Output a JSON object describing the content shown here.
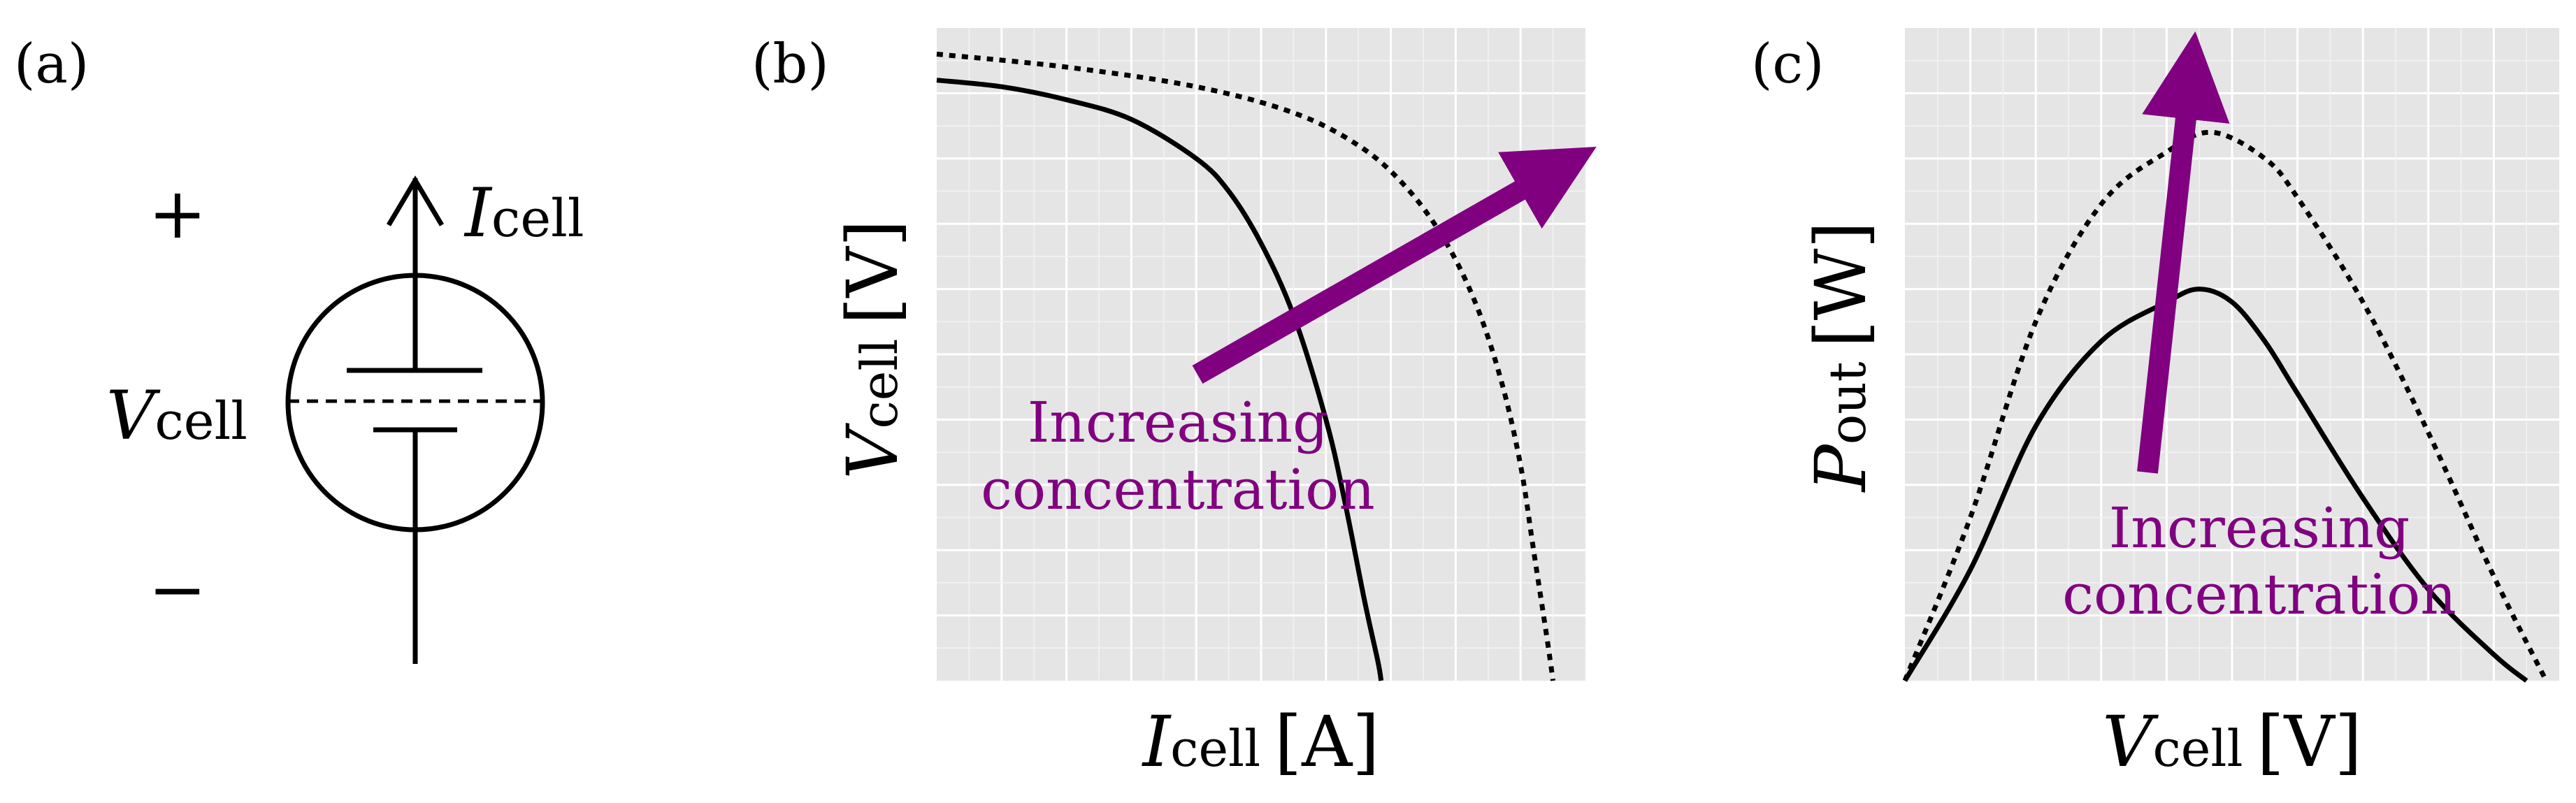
{
  "panels": {
    "a": {
      "label": "(a)",
      "plus_sign": "+",
      "minus_sign": "−",
      "current_label": {
        "main": "I",
        "sub": "cell"
      },
      "voltage_label": {
        "main": "V",
        "sub": "cell"
      }
    },
    "b": {
      "label": "(b)",
      "xlabel": {
        "main": "I",
        "sub": "cell",
        "unit": "[A]"
      },
      "ylabel": {
        "main": "V",
        "sub": "cell",
        "unit": "[V]"
      },
      "annotation": [
        "Increasing",
        "concentration"
      ]
    },
    "c": {
      "label": "(c)",
      "xlabel": {
        "main": "V",
        "sub": "cell",
        "unit": "[V]"
      },
      "ylabel": {
        "main": "P",
        "sub": "out",
        "unit": "[W]"
      },
      "annotation": [
        "Increasing",
        "concentration"
      ]
    }
  },
  "colors": {
    "accent": "#800080",
    "plot_background": "#e5e5e5",
    "grid": "#ffffff",
    "curve": "#000000"
  },
  "chart_data": [
    {
      "type": "line",
      "title": "",
      "xlabel": "I_cell [A]",
      "ylabel": "V_cell [V]",
      "grid": true,
      "xlim": [
        0,
        1
      ],
      "ylim": [
        0,
        1
      ],
      "series": [
        {
          "style": "solid",
          "x": [
            0,
            0.1,
            0.2,
            0.3,
            0.4,
            0.45,
            0.5,
            0.55,
            0.6,
            0.63,
            0.66,
            0.68,
            0.685
          ],
          "y": [
            0.92,
            0.91,
            0.89,
            0.86,
            0.8,
            0.75,
            0.67,
            0.56,
            0.4,
            0.27,
            0.12,
            0.03,
            0.0
          ]
        },
        {
          "style": "dotted",
          "x": [
            0,
            0.2,
            0.4,
            0.55,
            0.65,
            0.72,
            0.78,
            0.83,
            0.87,
            0.9,
            0.92,
            0.94,
            0.95
          ],
          "y": [
            0.96,
            0.94,
            0.91,
            0.87,
            0.82,
            0.76,
            0.68,
            0.58,
            0.46,
            0.33,
            0.2,
            0.07,
            0.0
          ]
        }
      ]
    },
    {
      "type": "line",
      "title": "",
      "xlabel": "V_cell [V]",
      "ylabel": "P_out [W]",
      "grid": true,
      "xlim": [
        0,
        1
      ],
      "ylim": [
        0,
        1
      ],
      "series": [
        {
          "style": "solid",
          "x": [
            0,
            0.1,
            0.2,
            0.3,
            0.4,
            0.45,
            0.5,
            0.55,
            0.6,
            0.7,
            0.8,
            0.9,
            0.95
          ],
          "y": [
            0.0,
            0.17,
            0.39,
            0.52,
            0.58,
            0.6,
            0.58,
            0.52,
            0.44,
            0.28,
            0.14,
            0.04,
            0.0
          ]
        },
        {
          "style": "dotted",
          "x": [
            0,
            0.1,
            0.2,
            0.3,
            0.4,
            0.47,
            0.55,
            0.6,
            0.7,
            0.8,
            0.9,
            0.98
          ],
          "y": [
            0.0,
            0.25,
            0.55,
            0.73,
            0.81,
            0.84,
            0.8,
            0.74,
            0.58,
            0.38,
            0.16,
            0.0
          ]
        }
      ]
    }
  ]
}
